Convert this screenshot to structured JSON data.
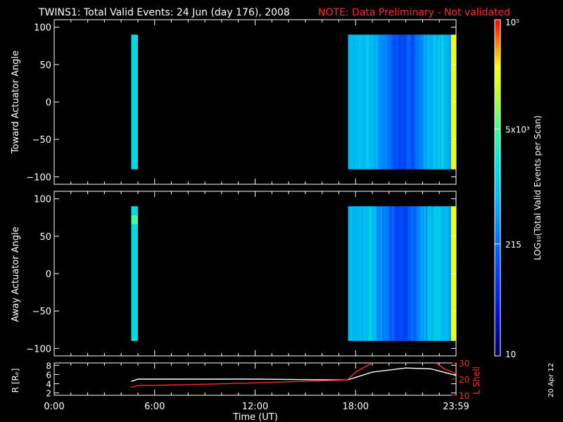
{
  "title": "TWINS1: Total Valid Events: 24 Jun (day 176), 2008",
  "note": "NOTE: Data Preliminary - Not validated",
  "date_stamp": "20 Apr 12",
  "colors": {
    "note": "#ff2a2a",
    "axis": "#ffffff",
    "r_line": "#ffffff",
    "l_shell_line": "#ff2a2a"
  },
  "chart_data": [
    {
      "type": "heatmap",
      "ylabel": "Toward Actuator Angle",
      "ylim": [
        -110,
        110
      ],
      "yticks": [
        100,
        50,
        0,
        -50,
        -100
      ],
      "xlim": [
        0,
        24
      ],
      "bands": [
        {
          "x0": 4.6,
          "x1": 5.0,
          "y0": -90,
          "y1": 90,
          "level": 0.55
        },
        {
          "x0": 17.55,
          "x1": 23.7,
          "y0": -90,
          "y1": 90,
          "level": "variable"
        },
        {
          "x0": 23.7,
          "x1": 24.0,
          "y0": -90,
          "y1": 90,
          "level": 0.85
        }
      ]
    },
    {
      "type": "heatmap",
      "ylabel": "Away Actuator Angle",
      "ylim": [
        -110,
        110
      ],
      "yticks": [
        100,
        50,
        0,
        -50,
        -100
      ],
      "xlim": [
        0,
        24
      ],
      "bands": [
        {
          "x0": 4.6,
          "x1": 5.0,
          "y0": -90,
          "y1": 90,
          "level": 0.55
        },
        {
          "x0": 17.55,
          "x1": 23.7,
          "y0": -90,
          "y1": 90,
          "level": "variable"
        },
        {
          "x0": 23.7,
          "x1": 24.0,
          "y0": -90,
          "y1": 90,
          "level": 0.85
        }
      ]
    },
    {
      "type": "line",
      "ylabel": "R [Rₑ]",
      "ylabel_right": "L Shell",
      "ylim": [
        1.5,
        8.5
      ],
      "yticks": [
        8,
        6,
        4,
        2
      ],
      "ylim_right": [
        10,
        30
      ],
      "yticks_right": [
        30,
        20,
        10
      ],
      "xlim": [
        0,
        24
      ],
      "xticks": [
        "0:00",
        "6:00",
        "12:00",
        "18:00",
        "23:59"
      ],
      "xtick_hours": [
        0,
        6,
        12,
        18,
        24
      ],
      "xlabel": "Time (UT)",
      "series": [
        {
          "axis": "left",
          "color": "#ffffff",
          "x": [
            4.6,
            5.0,
            8,
            12,
            17.5,
            19,
            21,
            22.5,
            24
          ],
          "y": [
            4.5,
            5.0,
            5.0,
            5.0,
            4.8,
            6.5,
            7.4,
            7.2,
            5.8
          ]
        },
        {
          "axis": "left",
          "color": "#ff2a2a",
          "x": [
            4.6,
            5.0,
            8,
            12,
            17.5,
            18,
            19
          ],
          "y": [
            3.2,
            3.6,
            3.8,
            4.2,
            4.8,
            6.5,
            8.5
          ]
        },
        {
          "axis": "left",
          "color": "#ff2a2a",
          "x": [
            22.8,
            23.3,
            24
          ],
          "y": [
            8.5,
            7.2,
            6.2
          ]
        }
      ]
    }
  ],
  "colorbar": {
    "label": "LOG₁₀(Total Valid Events per Scan)",
    "ticks": [
      {
        "label": "10⁵",
        "value": 100000
      },
      {
        "label": "5x10³",
        "value": 5000
      },
      {
        "label": "215",
        "value": 215
      },
      {
        "label": "10",
        "value": 10
      }
    ],
    "range": [
      10,
      100000
    ]
  }
}
